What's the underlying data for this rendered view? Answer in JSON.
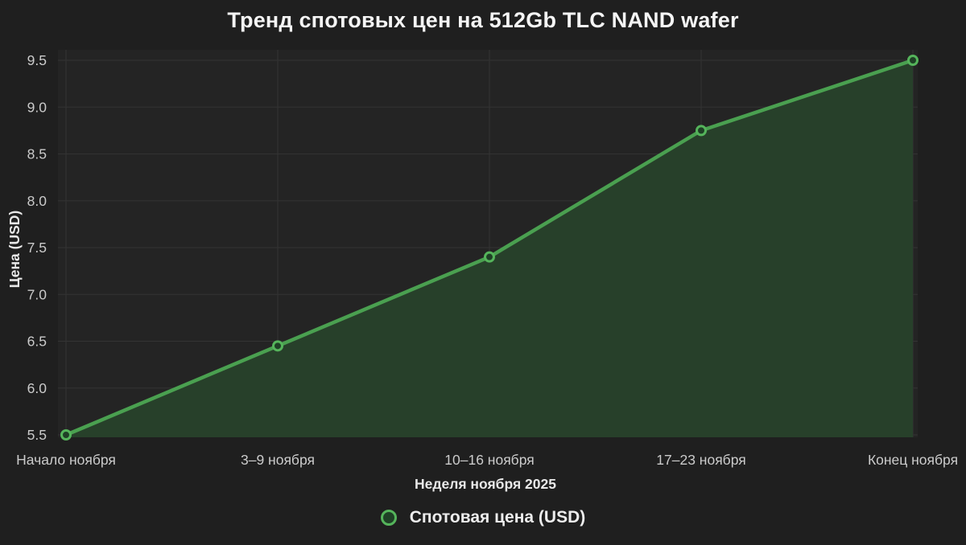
{
  "chart_data": {
    "type": "line",
    "title": "Тренд спотовых цен на 512Gb TLC NAND wafer",
    "categories": [
      "Начало ноября",
      "3–9 ноября",
      "10–16 ноября",
      "17–23 ноября",
      "Конец ноября"
    ],
    "series": [
      {
        "name": "Спотовая цена (USD)",
        "values": [
          5.5,
          6.45,
          7.4,
          8.75,
          9.5
        ]
      }
    ],
    "xlabel": "Неделя ноября 2025",
    "ylabel": "Цена (USD)",
    "ylim": [
      5.5,
      9.5
    ],
    "yticks": [
      5.5,
      6.0,
      6.5,
      7.0,
      7.5,
      8.0,
      8.5,
      9.0,
      9.5
    ],
    "grid": true,
    "legend": {
      "position": "bottom",
      "entries": [
        "Спотовая цена (USD)"
      ]
    },
    "colors": {
      "background": "#1f1f1f",
      "plot_background": "#242424",
      "grid": "#333333",
      "line": "#4aa050",
      "area_fill": "#27402a",
      "marker_fill": "#1f4026",
      "marker_stroke": "#55b45b",
      "title_text": "#f5f5f5",
      "tick_text": "#cbcbcb",
      "axis_label_text": "#e8e8e8",
      "legend_text": "#ededed"
    }
  }
}
